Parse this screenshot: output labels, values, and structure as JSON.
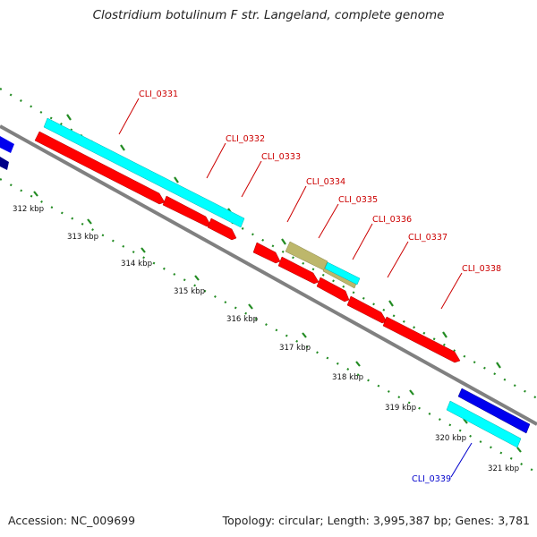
{
  "title": "Clostridium botulinum F str. Langeland, complete genome",
  "footer": {
    "accession": "Accession: NC_009699",
    "summary": "Topology: circular; Length: 3,995,387 bp; Genes: 3,781"
  },
  "colors": {
    "background": "#ffffff",
    "backbone": "#808080",
    "cds_forward": "#ff0000",
    "cds_reverse": "#0000ee",
    "feature_cyan": "#00ffff",
    "feature_khaki": "#bdb76b",
    "gc_ticks": "#228b22",
    "label_red": "#cc0000",
    "label_blue": "#0000cc"
  },
  "ruler": {
    "ticks": [
      {
        "label": "312 kbp"
      },
      {
        "label": "313 kbp"
      },
      {
        "label": "314 kbp"
      },
      {
        "label": "315 kbp"
      },
      {
        "label": "316 kbp"
      },
      {
        "label": "317 kbp"
      },
      {
        "label": "318 kbp"
      },
      {
        "label": "319 kbp"
      },
      {
        "label": "320 kbp"
      },
      {
        "label": "321 kbp"
      }
    ]
  },
  "gene_labels": [
    {
      "text": "CLI_0331",
      "color": "#cc0000"
    },
    {
      "text": "CLI_0332",
      "color": "#cc0000"
    },
    {
      "text": "CLI_0333",
      "color": "#cc0000"
    },
    {
      "text": "CLI_0334",
      "color": "#cc0000"
    },
    {
      "text": "CLI_0335",
      "color": "#cc0000"
    },
    {
      "text": "CLI_0336",
      "color": "#cc0000"
    },
    {
      "text": "CLI_0337",
      "color": "#cc0000"
    },
    {
      "text": "CLI_0338",
      "color": "#cc0000"
    },
    {
      "text": "CLI_0339",
      "color": "#0000cc"
    }
  ]
}
